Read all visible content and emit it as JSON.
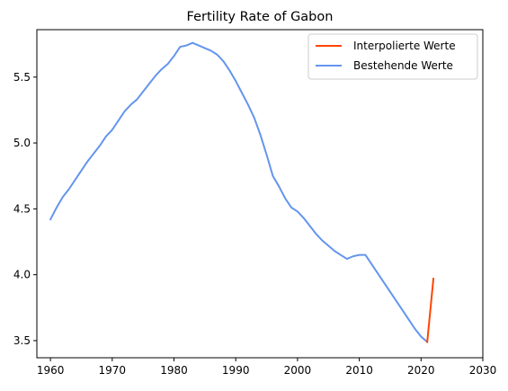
{
  "chart_data": {
    "type": "line",
    "title": "Fertility Rate of Gabon",
    "xlabel": "",
    "ylabel": "",
    "xlim": [
      1957.8,
      2030
    ],
    "ylim": [
      3.37,
      5.86
    ],
    "xticks": [
      1960,
      1970,
      1980,
      1990,
      2000,
      2010,
      2020,
      2030
    ],
    "yticks": [
      3.5,
      4.0,
      4.5,
      5.0,
      5.5
    ],
    "ytick_labels": [
      "3.5",
      "4.0",
      "4.5",
      "5.0",
      "5.5"
    ],
    "grid": false,
    "legend_position": "top-right",
    "series": [
      {
        "name": "Interpolierte Werte",
        "color": "#ff4500",
        "x": [
          2021,
          2022
        ],
        "y": [
          3.49,
          3.97
        ]
      },
      {
        "name": "Bestehende Werte",
        "color": "#6495ed",
        "x": [
          1960,
          1961,
          1962,
          1963,
          1964,
          1965,
          1966,
          1967,
          1968,
          1969,
          1970,
          1971,
          1972,
          1973,
          1974,
          1975,
          1976,
          1977,
          1978,
          1979,
          1980,
          1981,
          1982,
          1983,
          1984,
          1985,
          1986,
          1987,
          1988,
          1989,
          1990,
          1991,
          1992,
          1993,
          1994,
          1995,
          1996,
          1997,
          1998,
          1999,
          2000,
          2001,
          2002,
          2003,
          2004,
          2005,
          2006,
          2007,
          2008,
          2009,
          2010,
          2011,
          2012,
          2013,
          2014,
          2015,
          2016,
          2017,
          2018,
          2019,
          2020,
          2021
        ],
        "y": [
          4.42,
          4.51,
          4.59,
          4.65,
          4.72,
          4.79,
          4.86,
          4.92,
          4.98,
          5.05,
          5.1,
          5.17,
          5.24,
          5.29,
          5.33,
          5.39,
          5.45,
          5.51,
          5.56,
          5.6,
          5.66,
          5.73,
          5.74,
          5.76,
          5.74,
          5.72,
          5.7,
          5.67,
          5.62,
          5.55,
          5.47,
          5.38,
          5.29,
          5.19,
          5.06,
          4.91,
          4.75,
          4.67,
          4.58,
          4.51,
          4.48,
          4.43,
          4.37,
          4.31,
          4.26,
          4.22,
          4.18,
          4.15,
          4.12,
          4.14,
          4.15,
          4.15,
          4.08,
          4.01,
          3.94,
          3.87,
          3.8,
          3.73,
          3.66,
          3.59,
          3.53,
          3.49
        ]
      }
    ]
  }
}
